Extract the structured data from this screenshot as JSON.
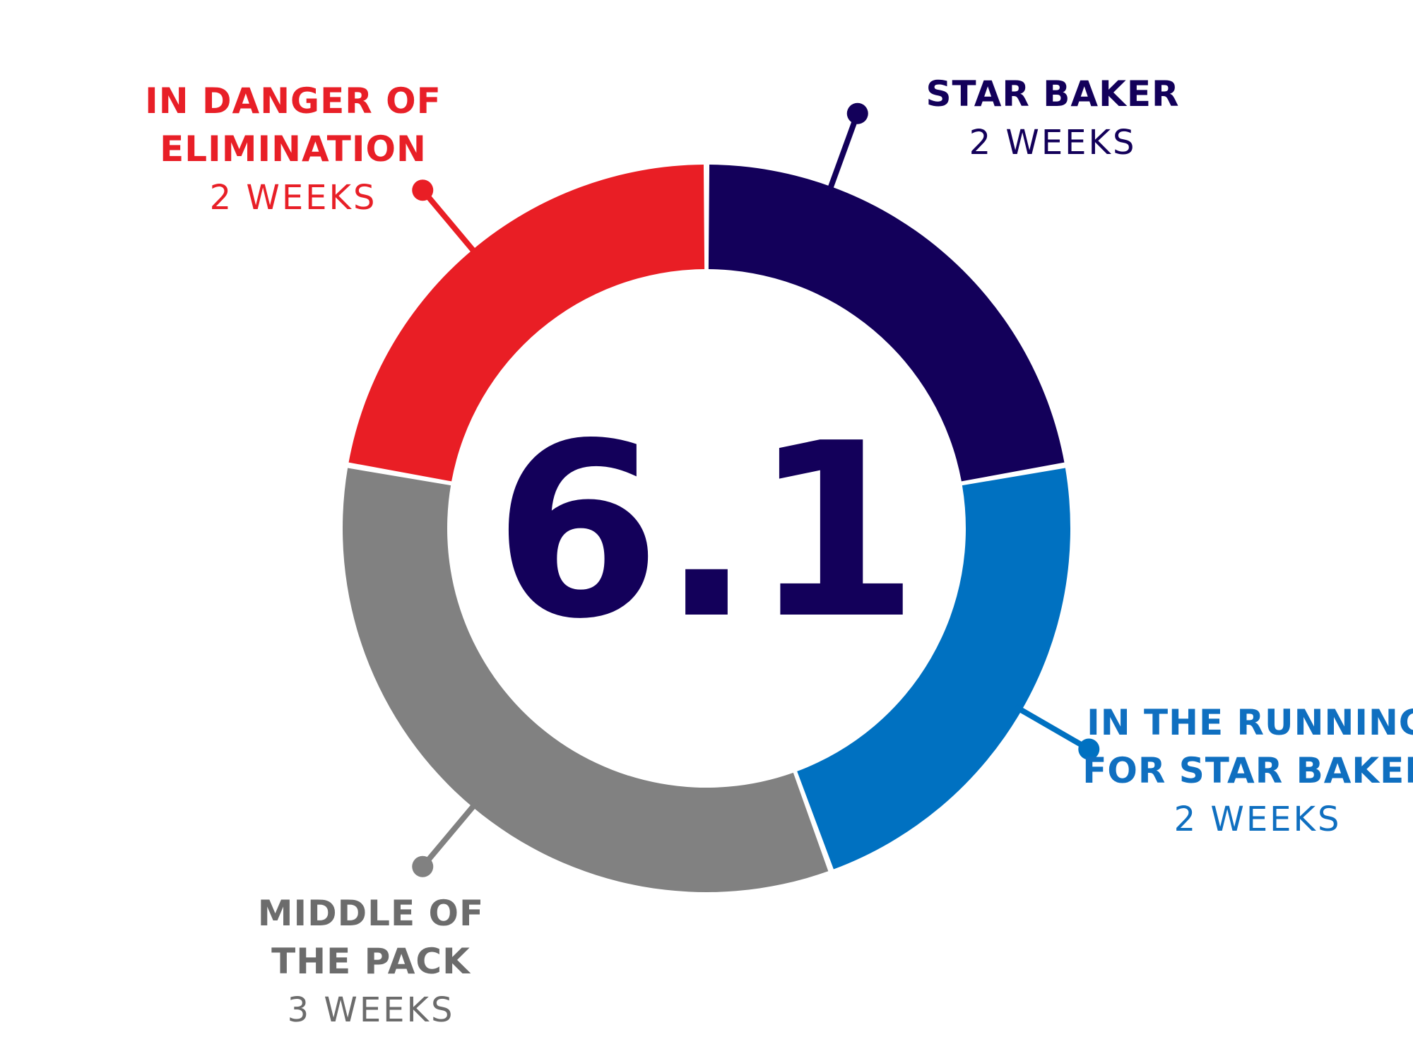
{
  "chart_data": {
    "type": "pie",
    "center_value": "6.1",
    "center_color": "#13005a",
    "donut": true,
    "start_angle_deg": 0,
    "direction": "clockwise",
    "slices": [
      {
        "label_lines": [
          "STAR BAKER"
        ],
        "value_text": "2 WEEKS",
        "value": 2,
        "color": "#13005a",
        "label_color": "#13005a"
      },
      {
        "label_lines": [
          "IN THE RUNNING",
          "FOR STAR BAKER"
        ],
        "value_text": "2 WEEKS",
        "value": 2,
        "color": "#0071c1",
        "label_color": "#0f6fc0"
      },
      {
        "label_lines": [
          "MIDDLE OF",
          "THE PACK"
        ],
        "value_text": "3 WEEKS",
        "value": 3,
        "color": "#818181",
        "label_color": "#6c6c6c"
      },
      {
        "label_lines": [
          "IN DANGER OF",
          "ELIMINATION"
        ],
        "value_text": "2 WEEKS",
        "value": 2,
        "color": "#e91e25",
        "label_color": "#e81f27"
      }
    ]
  }
}
